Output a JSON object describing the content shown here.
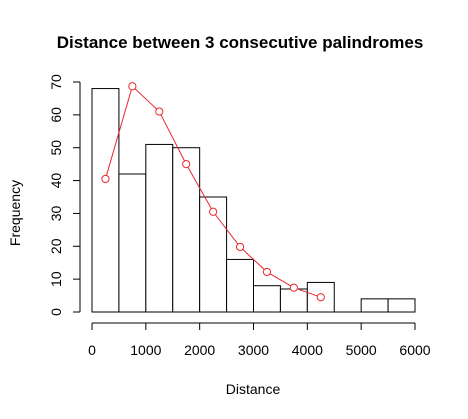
{
  "chart_data": {
    "type": "bar",
    "title": "Distance between 3 consecutive palindromes",
    "xlabel": "Distance",
    "ylabel": "Frequency",
    "xlim": [
      0,
      6000
    ],
    "ylim": [
      0,
      70
    ],
    "x_ticks": [
      0,
      1000,
      2000,
      3000,
      4000,
      5000,
      6000
    ],
    "y_ticks": [
      0,
      10,
      20,
      30,
      40,
      50,
      60,
      70
    ],
    "bins": [
      {
        "x0": 0,
        "x1": 500,
        "count": 68
      },
      {
        "x0": 500,
        "x1": 1000,
        "count": 42
      },
      {
        "x0": 1000,
        "x1": 1500,
        "count": 51
      },
      {
        "x0": 1500,
        "x1": 2000,
        "count": 50
      },
      {
        "x0": 2000,
        "x1": 2500,
        "count": 35
      },
      {
        "x0": 2500,
        "x1": 3000,
        "count": 16
      },
      {
        "x0": 3000,
        "x1": 3500,
        "count": 8
      },
      {
        "x0": 3500,
        "x1": 4000,
        "count": 7
      },
      {
        "x0": 4000,
        "x1": 4500,
        "count": 9
      },
      {
        "x0": 4500,
        "x1": 5000,
        "count": 0
      },
      {
        "x0": 5000,
        "x1": 5500,
        "count": 4
      },
      {
        "x0": 5500,
        "x1": 6000,
        "count": 4
      }
    ],
    "overlay_line": {
      "color": "#e8282d",
      "marker": "open-circle",
      "points": [
        {
          "x": 250,
          "y": 40.5
        },
        {
          "x": 750,
          "y": 68.7
        },
        {
          "x": 1250,
          "y": 61
        },
        {
          "x": 1750,
          "y": 45
        },
        {
          "x": 2250,
          "y": 30.5
        },
        {
          "x": 2750,
          "y": 19.8
        },
        {
          "x": 3250,
          "y": 12.2
        },
        {
          "x": 3750,
          "y": 7.4
        },
        {
          "x": 4250,
          "y": 4.5
        }
      ]
    }
  }
}
